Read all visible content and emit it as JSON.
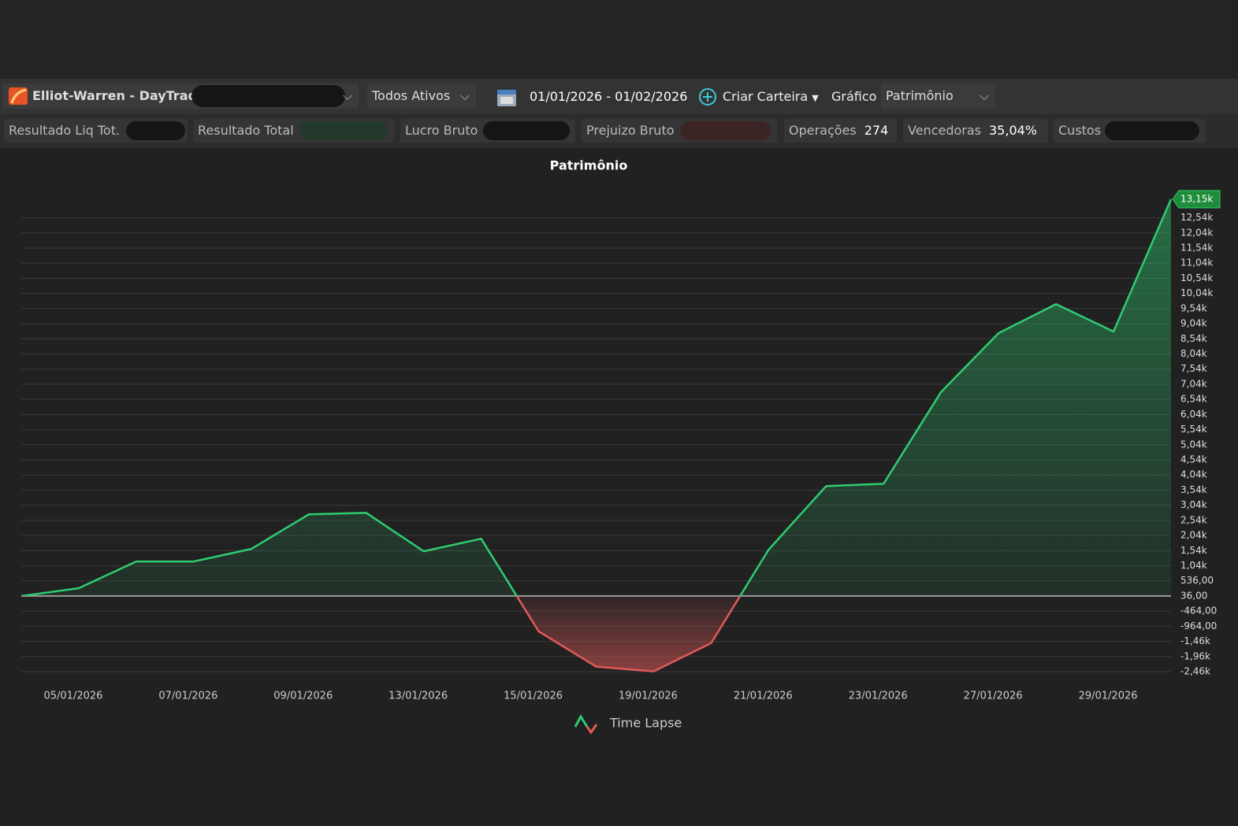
{
  "toolbar": {
    "account": "Elliot-Warren - DayTrade",
    "assets": "Todos Ativos",
    "date_range": "01/01/2026 - 01/02/2026",
    "create_button": "Criar Carteira",
    "chart_label": "Gráfico",
    "chart_select": "Patrimônio"
  },
  "stats": [
    {
      "label": "Resultado Liq Tot."
    },
    {
      "label": "Resultado Total"
    },
    {
      "label": "Lucro Bruto"
    },
    {
      "label": "Prejuizo Bruto"
    },
    {
      "label": "Operações",
      "value": 274
    },
    {
      "label": "Vencedoras",
      "value": "35,04%"
    },
    {
      "label": "Custos"
    }
  ],
  "chart_data": {
    "type": "line",
    "title": "Patrimônio",
    "categories": [
      null,
      "05/01/2026",
      null,
      "07/01/2026",
      null,
      "09/01/2026",
      null,
      "13/01/2026",
      null,
      "15/01/2026",
      null,
      "19/01/2026",
      null,
      "21/01/2026",
      null,
      "23/01/2026",
      null,
      "27/01/2026",
      null,
      "29/01/2026",
      null
    ],
    "series": [
      {
        "name": "Time Lapse",
        "color": "#2ecc71",
        "negative_color": "#e05a5a",
        "values": [
          36,
          295,
          1177,
          1177,
          1592,
          2733,
          2785,
          1514,
          1929,
          -1131,
          -2298,
          -2454,
          -1520,
          1566,
          3667,
          3745,
          6779,
          8724,
          9683,
          8776,
          13150
        ]
      }
    ],
    "baseline": 36,
    "current_value": {
      "value": 13150,
      "label": "13,15k"
    },
    "ylim": [
      -2464,
      13150
    ],
    "yticks": [
      {
        "value": -2464,
        "label": "-2,46k"
      },
      {
        "value": -1964,
        "label": "-1,96k"
      },
      {
        "value": -1464,
        "label": "-1,46k"
      },
      {
        "value": -964,
        "label": "-964,00"
      },
      {
        "value": -464,
        "label": "-464,00"
      },
      {
        "value": 36,
        "label": "36,00"
      },
      {
        "value": 536,
        "label": "536,00"
      },
      {
        "value": 1036,
        "label": "1,04k"
      },
      {
        "value": 1536,
        "label": "1,54k"
      },
      {
        "value": 2036,
        "label": "2,04k"
      },
      {
        "value": 2536,
        "label": "2,54k"
      },
      {
        "value": 3036,
        "label": "3,04k"
      },
      {
        "value": 3536,
        "label": "3,54k"
      },
      {
        "value": 4036,
        "label": "4,04k"
      },
      {
        "value": 4536,
        "label": "4,54k"
      },
      {
        "value": 5036,
        "label": "5,04k"
      },
      {
        "value": 5536,
        "label": "5,54k"
      },
      {
        "value": 6036,
        "label": "6,04k"
      },
      {
        "value": 6536,
        "label": "6,54k"
      },
      {
        "value": 7036,
        "label": "7,04k"
      },
      {
        "value": 7536,
        "label": "7,54k"
      },
      {
        "value": 8036,
        "label": "8,04k"
      },
      {
        "value": 8536,
        "label": "8,54k"
      },
      {
        "value": 9036,
        "label": "9,04k"
      },
      {
        "value": 9536,
        "label": "9,54k"
      },
      {
        "value": 10036,
        "label": "10,04k"
      },
      {
        "value": 10536,
        "label": "10,54k"
      },
      {
        "value": 11036,
        "label": "11,04k"
      },
      {
        "value": 11536,
        "label": "11,54k"
      },
      {
        "value": 12036,
        "label": "12,04k"
      },
      {
        "value": 12536,
        "label": "12,54k"
      }
    ],
    "grid": true
  }
}
